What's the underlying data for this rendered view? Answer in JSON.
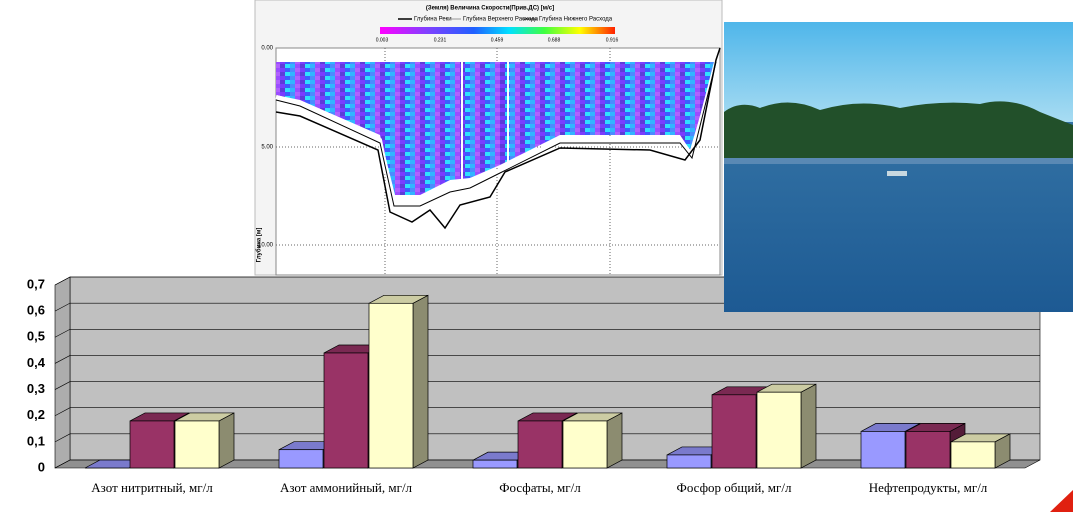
{
  "chart_data": {
    "type": "bar",
    "categories": [
      "Азот нитритный, мг/л",
      "Азот аммонийный, мг/л",
      "Фосфаты, мг/л",
      "Фосфор общий, мг/л",
      "Нефтепродукты, мг/л"
    ],
    "series": [
      {
        "color": "#9999ff",
        "values": [
          0,
          0.07,
          0.03,
          0.05,
          0.14
        ]
      },
      {
        "color": "#993366",
        "values": [
          0.18,
          0.44,
          0.18,
          0.28,
          0.14
        ]
      },
      {
        "color": "#ffffcc",
        "values": [
          0.18,
          0.63,
          0.18,
          0.29,
          0.1
        ]
      }
    ],
    "ylim": [
      0,
      0.7
    ],
    "yticks": [
      0,
      {
        "value": 0.1,
        "label": "0,1"
      },
      {
        "value": 0.2,
        "label": "0,2"
      },
      {
        "value": 0.3,
        "label": "0,3"
      },
      {
        "value": 0.4,
        "label": "0,4"
      },
      {
        "value": 0.5,
        "label": "0,5"
      },
      {
        "value": 0.6,
        "label": "0,6"
      },
      {
        "value": 0.7,
        "label": "0,7"
      }
    ],
    "grid": true,
    "wall_color": "#c0c0c0"
  },
  "profile_image": {
    "title": "(Земля) Величина Скорости(Прив.ДС) [м/с]",
    "legend": [
      "Глубина Реки",
      "Глубина Верхнего Расхода",
      "Глубина Нижнего Расхода"
    ],
    "colorbar_ticks": [
      "0.003",
      "0.231",
      "0.459",
      "0.688",
      "0.916"
    ],
    "y_ticks": [
      "0.00",
      "5.00",
      "10.00"
    ],
    "y_label": "Глубина [м]"
  }
}
